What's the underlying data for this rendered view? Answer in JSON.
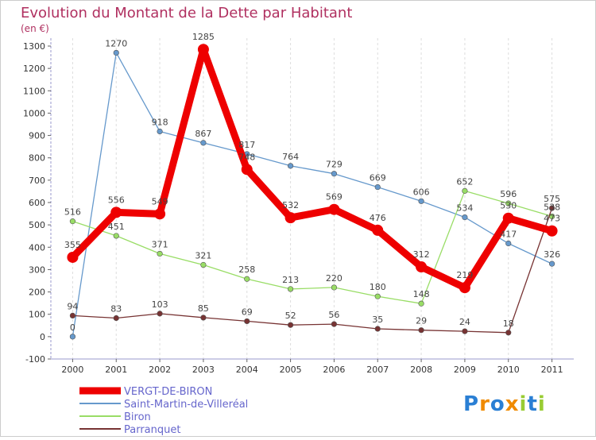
{
  "chart_data": {
    "type": "line",
    "title": "Evolution du Montant de la Dette par Habitant",
    "subtitle": "(en €)",
    "x": [
      "2000",
      "2001",
      "2002",
      "2003",
      "2004",
      "2005",
      "2006",
      "2007",
      "2008",
      "2009",
      "2010",
      "2011"
    ],
    "ylim": [
      -100,
      1300
    ],
    "yticks": [
      -100,
      0,
      100,
      200,
      300,
      400,
      500,
      600,
      700,
      800,
      900,
      1000,
      1100,
      1200,
      1300
    ],
    "grid": "vertical-dashed",
    "legend_position": "bottom-left",
    "series": [
      {
        "name": "VERGT-DE-BIRON",
        "color": "#ee0000",
        "values": [
          355,
          556,
          549,
          1285,
          748,
          532,
          569,
          476,
          312,
          219,
          530,
          473
        ],
        "labels": [
          "355",
          "556",
          "549",
          "1285",
          "748",
          "532",
          "569",
          "476",
          "312",
          "219",
          "530",
          "473"
        ]
      },
      {
        "name": "Saint-Martin-de-Villeréal",
        "color": "#6699cc",
        "values": [
          0,
          1270,
          918,
          867,
          817,
          764,
          729,
          669,
          606,
          534,
          417,
          326
        ],
        "labels": [
          "0",
          "1270",
          "918",
          "867",
          "817",
          "764",
          "729",
          "669",
          "606",
          "534",
          "417",
          "326"
        ]
      },
      {
        "name": "Biron",
        "color": "#99dd66",
        "values": [
          516,
          451,
          371,
          321,
          258,
          213,
          220,
          180,
          148,
          652,
          596,
          538
        ],
        "labels": [
          "516",
          "451",
          "371",
          "321",
          "258",
          "213",
          "220",
          "180",
          "148",
          "652",
          "596",
          "538"
        ]
      },
      {
        "name": "Parranquet",
        "color": "#773333",
        "values": [
          94,
          83,
          103,
          85,
          69,
          52,
          56,
          35,
          29,
          24,
          18,
          575
        ],
        "labels": [
          "94",
          "83",
          "103",
          "85",
          "69",
          "52",
          "56",
          "35",
          "29",
          "24",
          "18",
          "575"
        ]
      }
    ]
  },
  "logo": {
    "text": "Proxiti"
  }
}
